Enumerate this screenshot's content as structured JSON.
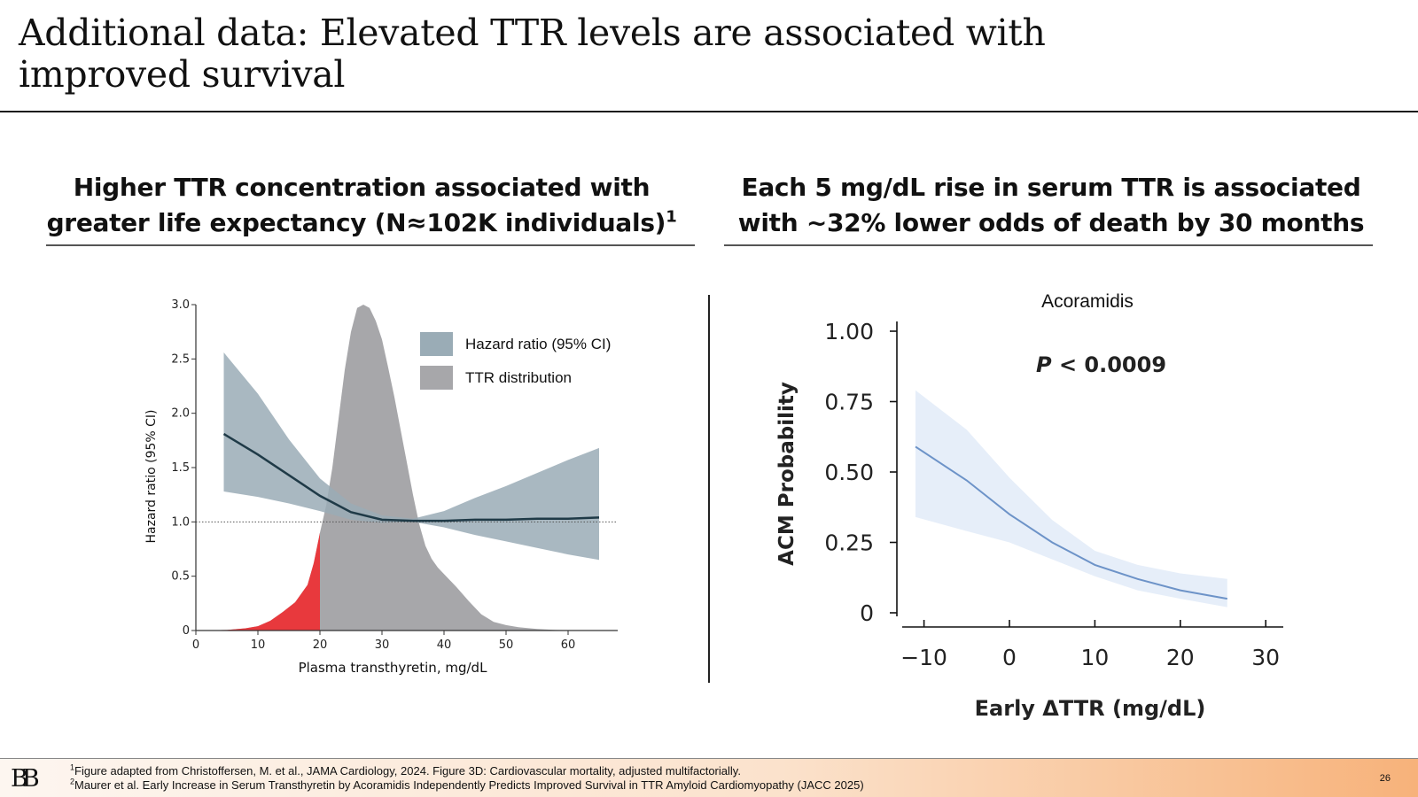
{
  "slide": {
    "title": "Additional data: Elevated TTR levels are associated with improved survival",
    "page_number": "26",
    "logo_text": "BB"
  },
  "left_panel": {
    "heading_line1": "Higher TTR concentration associated with",
    "heading_line2": "greater life expectancy (N≈102K individuals)",
    "heading_sup": "1"
  },
  "right_panel": {
    "heading_line1": "Each 5 mg/dL rise in serum TTR is associated",
    "heading_line2": "with ~32% lower odds of death by 30 months"
  },
  "footnotes": [
    {
      "sup": "1",
      "text": "Figure adapted from Christoffersen, M. et al., JAMA Cardiology, 2024. Figure 3D: Cardiovascular mortality, adjusted multifactorially."
    },
    {
      "sup": "2",
      "text": "Maurer et al. Early Increase in Serum Transthyretin by Acoramidis Independently Predicts Improved Survival in TTR Amyloid Cardiomyopathy (JACC 2025)"
    }
  ],
  "colors": {
    "hr_band": "#9aacb6",
    "hr_line": "#1f3a47",
    "ttr_dist": "#a7a7aa",
    "low_ttr": "#e8393d",
    "acm_band": "#e6eef9",
    "acm_line": "#6d93c8"
  },
  "chart_data": [
    {
      "type": "area",
      "xlabel": "Plasma transthyretin, mg/dL",
      "ylabel": "Hazard ratio (95% CI)",
      "xlim": [
        0,
        68
      ],
      "ylim": [
        0,
        3.0
      ],
      "x_ticks": [
        0,
        10,
        20,
        30,
        40,
        50,
        60
      ],
      "x_tick_labels": [
        "0",
        "10",
        "20",
        "30",
        "40",
        "50",
        "60"
      ],
      "y_ticks": [
        0,
        0.5,
        1.0,
        1.5,
        2.0,
        2.5,
        3.0
      ],
      "y_tick_labels": [
        "0",
        "0.5",
        "1.0",
        "1.5",
        "2.0",
        "2.5",
        "3.0"
      ],
      "reference_line_y": 1.0,
      "legend_position": "top-right",
      "legend": [
        "Hazard ratio (95% CI)",
        "TTR distribution"
      ],
      "series": [
        {
          "name": "Hazard ratio (95% CI)",
          "kind": "line-with-band",
          "x": [
            4.5,
            10,
            15,
            20,
            25,
            30,
            35,
            40,
            45,
            50,
            55,
            60,
            65
          ],
          "y": [
            1.81,
            1.62,
            1.43,
            1.24,
            1.09,
            1.02,
            1.01,
            1.01,
            1.02,
            1.02,
            1.03,
            1.03,
            1.04
          ],
          "lower": [
            1.28,
            1.23,
            1.17,
            1.1,
            1.02,
            0.99,
            1.0,
            0.95,
            0.88,
            0.82,
            0.76,
            0.7,
            0.65
          ],
          "upper": [
            2.56,
            2.18,
            1.76,
            1.4,
            1.17,
            1.06,
            1.03,
            1.1,
            1.22,
            1.33,
            1.45,
            1.57,
            1.68
          ]
        },
        {
          "name": "TTR distribution",
          "kind": "density",
          "x": [
            0,
            5,
            8,
            10,
            12,
            14,
            16,
            18,
            19,
            20,
            21,
            22,
            23,
            24,
            25,
            26,
            27,
            28,
            29,
            30,
            31,
            32,
            33,
            34,
            35,
            36,
            37,
            38,
            39,
            40,
            42,
            44,
            46,
            48,
            50,
            52,
            55,
            58,
            62,
            65
          ],
          "y": [
            0,
            0.005,
            0.02,
            0.04,
            0.09,
            0.17,
            0.26,
            0.42,
            0.62,
            0.9,
            1.15,
            1.5,
            1.95,
            2.4,
            2.75,
            2.97,
            3.0,
            2.97,
            2.85,
            2.68,
            2.42,
            2.15,
            1.85,
            1.55,
            1.25,
            0.98,
            0.78,
            0.66,
            0.58,
            0.52,
            0.4,
            0.27,
            0.15,
            0.08,
            0.05,
            0.03,
            0.015,
            0.005,
            0.002,
            0
          ]
        }
      ],
      "highlight": {
        "x_max": 20,
        "note": "low TTR region shaded red"
      }
    },
    {
      "type": "line",
      "title": "Acoramidis",
      "annotation_p": "P",
      "annotation_value": " < 0.0009",
      "xlabel": "Early ΔTTR (mg/dL)",
      "ylabel": "ACM Probability",
      "xlim": [
        -12,
        32
      ],
      "ylim": [
        0,
        1.0
      ],
      "x_ticks": [
        -10,
        0,
        10,
        20,
        30
      ],
      "x_tick_labels": [
        "−10",
        "0",
        "10",
        "20",
        "30"
      ],
      "y_ticks": [
        0,
        0.25,
        0.5,
        0.75,
        1.0
      ],
      "y_tick_labels": [
        "0",
        "0.25",
        "0.50",
        "0.75",
        "1.00"
      ],
      "series": [
        {
          "name": "Acoramidis",
          "x": [
            -11,
            -5,
            0,
            5,
            10,
            15,
            20,
            25.5
          ],
          "y": [
            0.59,
            0.47,
            0.35,
            0.25,
            0.17,
            0.12,
            0.08,
            0.05
          ],
          "lower": [
            0.34,
            0.29,
            0.25,
            0.19,
            0.13,
            0.08,
            0.05,
            0.02
          ],
          "upper": [
            0.79,
            0.65,
            0.48,
            0.33,
            0.22,
            0.17,
            0.14,
            0.12
          ]
        }
      ]
    }
  ]
}
